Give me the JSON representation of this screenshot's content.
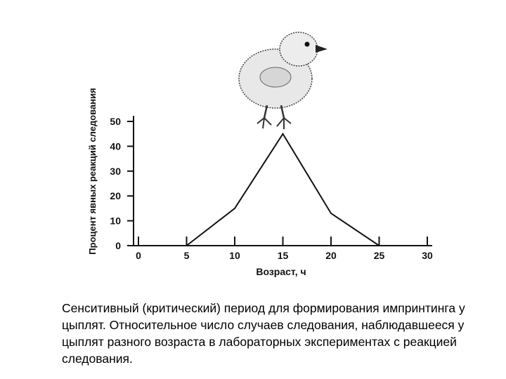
{
  "chart_data": {
    "type": "line",
    "title": "",
    "xlabel": "Возраст, ч",
    "ylabel": "Процент явных реакций следования",
    "x_ticks": [
      0,
      5,
      10,
      15,
      20,
      25,
      30
    ],
    "y_ticks": [
      0,
      10,
      20,
      30,
      40,
      50
    ],
    "xlim": [
      0,
      30
    ],
    "ylim": [
      0,
      50
    ],
    "grid": false,
    "series": [
      {
        "x": [
          5,
          10,
          15,
          20,
          25
        ],
        "y": [
          0,
          15,
          45,
          13,
          0
        ]
      }
    ],
    "colors": {
      "line": "#111111",
      "axis": "#111111"
    }
  },
  "illustration": {
    "icon": "chick-icon"
  },
  "caption": "Сенситивный (критический) период для формирования импринтинга у цыплят. Относительное число случаев следования, наблюдавшееся у цыплят разного возраста в лабораторных экспериментах с реакцией следования."
}
